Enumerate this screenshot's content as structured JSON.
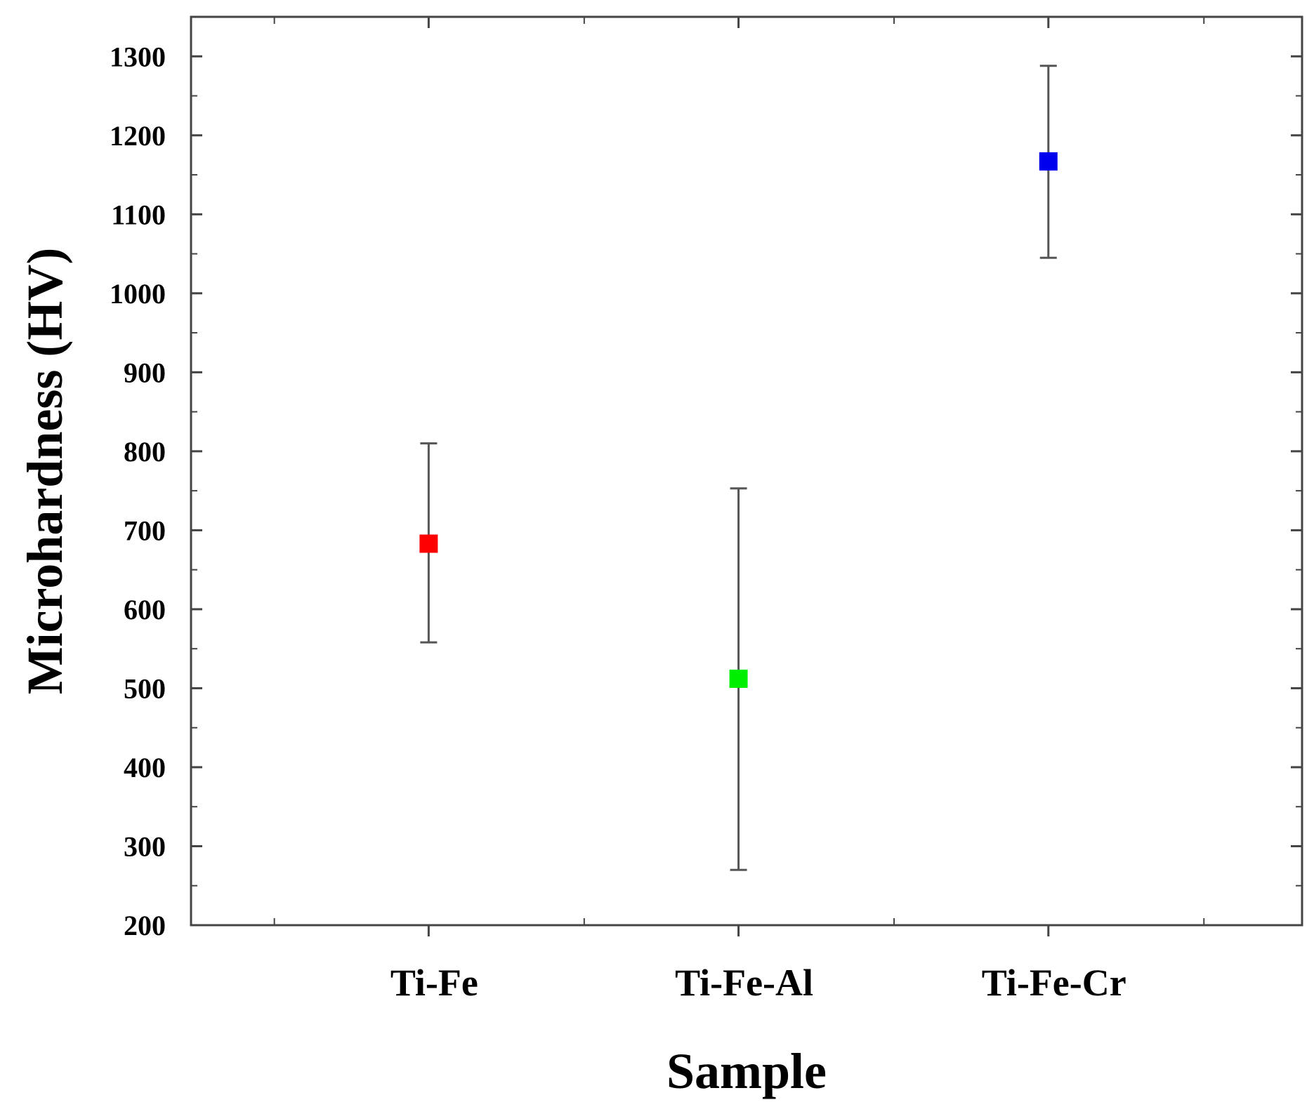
{
  "chart_data": {
    "type": "scatter",
    "title": "",
    "xlabel": "Sample",
    "ylabel": "Microhardness (HV)",
    "categories": [
      "Ti-Fe",
      "Ti-Fe-Al",
      "Ti-Fe-Cr"
    ],
    "values": [
      683,
      512,
      1167
    ],
    "error_low": [
      558,
      270,
      1045
    ],
    "error_high": [
      810,
      753,
      1288
    ],
    "marker_colors": [
      "#ff0000",
      "#00ee00",
      "#0000ee"
    ],
    "ylim": [
      200,
      1350
    ],
    "yticks": [
      200,
      300,
      400,
      500,
      600,
      700,
      800,
      900,
      1000,
      1100,
      1200,
      1300
    ],
    "ytick_labels": [
      "200",
      "300",
      "400",
      "500",
      "600",
      "700",
      "800",
      "900",
      "1000",
      "1100",
      "1200",
      "1300"
    ],
    "grid": false,
    "legend": "none"
  }
}
